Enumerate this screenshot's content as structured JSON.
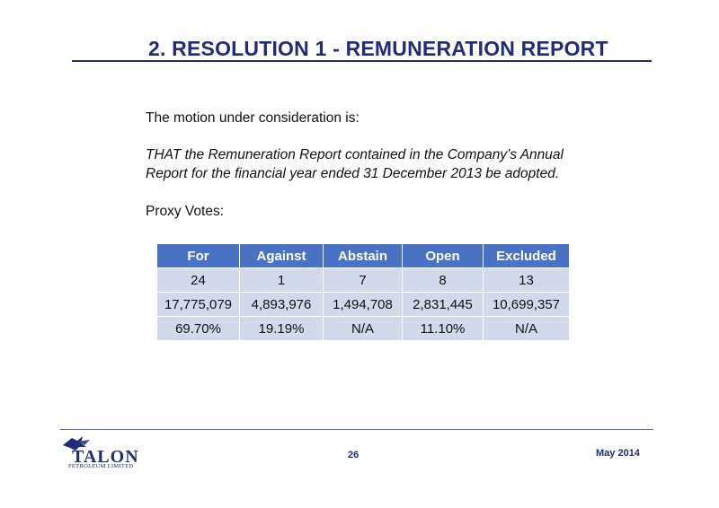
{
  "slide": {
    "title": "2. RESOLUTION 1 - REMUNERATION REPORT",
    "intro": "The motion under consideration is:",
    "motion_line1": "THAT the Remuneration Report contained in the Company’s Annual",
    "motion_line2": "Report for the financial year ended 31 December 2013 be adopted.",
    "proxy_label": "Proxy Votes:"
  },
  "table": {
    "headers": [
      "For",
      "Against",
      "Abstain",
      "Open",
      "Excluded"
    ],
    "rows": [
      [
        "24",
        "1",
        "7",
        "8",
        "13"
      ],
      [
        "17,775,079",
        "4,893,976",
        "1,494,708",
        "2,831,445",
        "10,699,357"
      ],
      [
        "69.70%",
        "19.19%",
        "N/A",
        "11.10%",
        "N/A"
      ]
    ]
  },
  "footer": {
    "logo_name": "TALON",
    "logo_sub": "PETROLEUM LIMITED",
    "page_number": "26",
    "date": "May 2014"
  },
  "colors": {
    "title": "#1f2d78",
    "table_header": "#4a73c5",
    "table_cell": "#d2d9ea"
  }
}
